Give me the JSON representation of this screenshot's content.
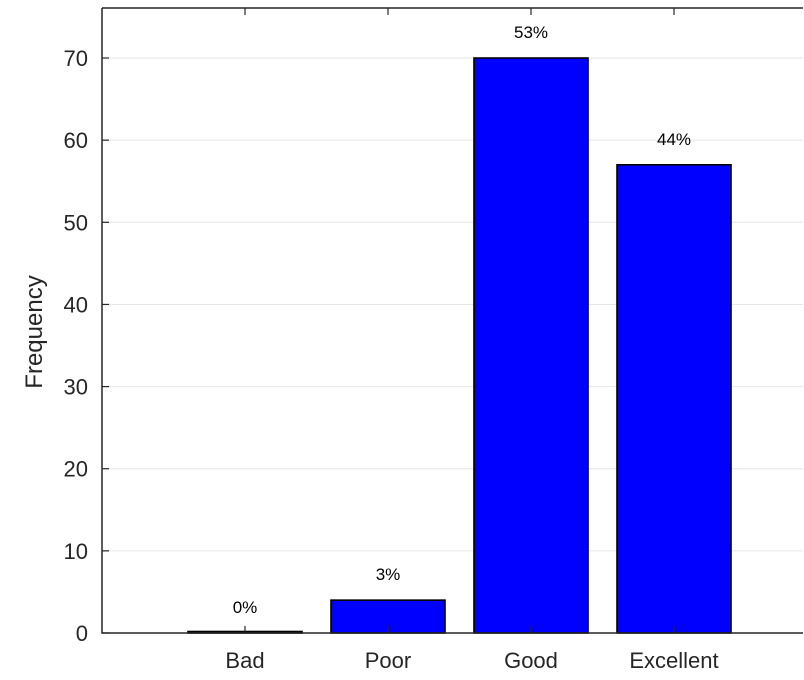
{
  "chart_data": {
    "type": "bar",
    "title": "",
    "xlabel": "",
    "ylabel": "Frequency",
    "categories": [
      "Bad",
      "Poor",
      "Good",
      "Excellent"
    ],
    "values": [
      0,
      4,
      70,
      57
    ],
    "data_labels": [
      "0%",
      "3%",
      "53%",
      "44%"
    ],
    "ylim": [
      0,
      70
    ],
    "yticks": [
      0,
      10,
      20,
      30,
      40,
      50,
      60,
      70
    ],
    "grid": "horizontal",
    "legend": "none",
    "bar_color": "#0000ff",
    "bar_edge_color": "#000000"
  }
}
